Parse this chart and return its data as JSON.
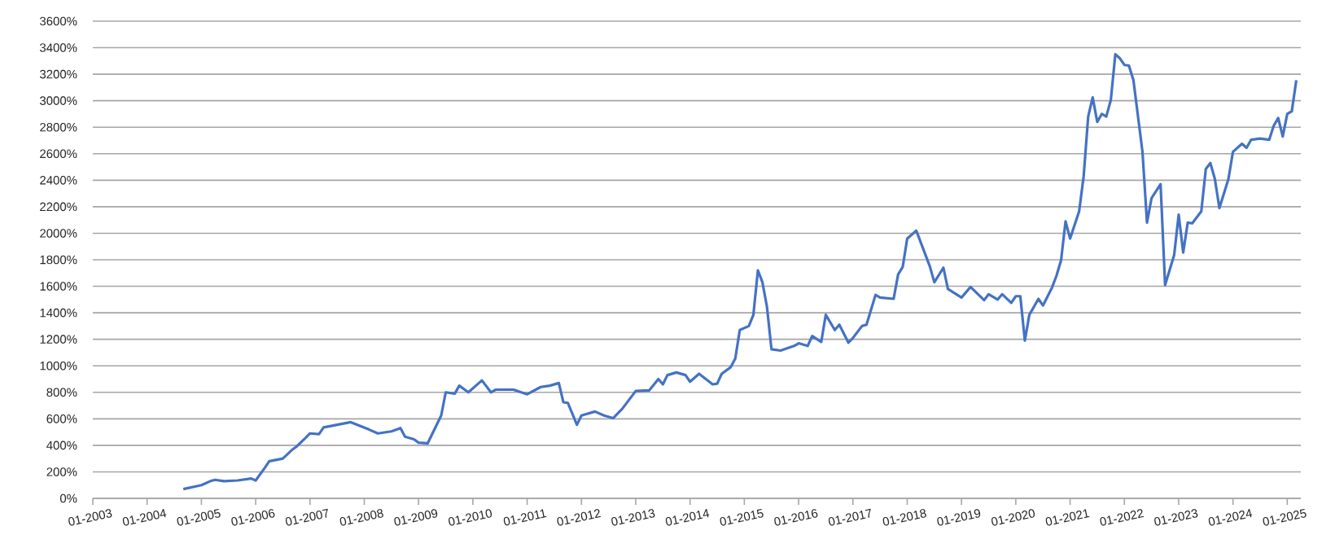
{
  "chart_data": {
    "type": "line",
    "color": "#4472c4",
    "grid": "y",
    "xlim": [
      "2003-01",
      "2025-04"
    ],
    "ylim": [
      0,
      3600
    ],
    "xticks": [
      {
        "value": "2003-01",
        "label": "01-2003"
      },
      {
        "value": "2004-01",
        "label": "01-2004"
      },
      {
        "value": "2005-01",
        "label": "01-2005"
      },
      {
        "value": "2006-01",
        "label": "01-2006"
      },
      {
        "value": "2007-01",
        "label": "01-2007"
      },
      {
        "value": "2008-01",
        "label": "01-2008"
      },
      {
        "value": "2009-01",
        "label": "01-2009"
      },
      {
        "value": "2010-01",
        "label": "01-2010"
      },
      {
        "value": "2011-01",
        "label": "01-2011"
      },
      {
        "value": "2012-01",
        "label": "01-2012"
      },
      {
        "value": "2013-01",
        "label": "01-2013"
      },
      {
        "value": "2014-01",
        "label": "01-2014"
      },
      {
        "value": "2015-01",
        "label": "01-2015"
      },
      {
        "value": "2016-01",
        "label": "01-2016"
      },
      {
        "value": "2017-01",
        "label": "01-2017"
      },
      {
        "value": "2018-01",
        "label": "01-2018"
      },
      {
        "value": "2019-01",
        "label": "01-2019"
      },
      {
        "value": "2020-01",
        "label": "01-2020"
      },
      {
        "value": "2021-01",
        "label": "01-2021"
      },
      {
        "value": "2022-01",
        "label": "01-2022"
      },
      {
        "value": "2023-01",
        "label": "01-2023"
      },
      {
        "value": "2024-01",
        "label": "01-2024"
      },
      {
        "value": "2025-01",
        "label": "01-2025"
      }
    ],
    "yticks": [
      {
        "value": 0,
        "label": "0%"
      },
      {
        "value": 200,
        "label": "200%"
      },
      {
        "value": 400,
        "label": "400%"
      },
      {
        "value": 600,
        "label": "600%"
      },
      {
        "value": 800,
        "label": "800%"
      },
      {
        "value": 1000,
        "label": "1000%"
      },
      {
        "value": 1200,
        "label": "1200%"
      },
      {
        "value": 1400,
        "label": "1400%"
      },
      {
        "value": 1600,
        "label": "1600%"
      },
      {
        "value": 1800,
        "label": "1800%"
      },
      {
        "value": 2000,
        "label": "2000%"
      },
      {
        "value": 2200,
        "label": "2200%"
      },
      {
        "value": 2400,
        "label": "2400%"
      },
      {
        "value": 2600,
        "label": "2600%"
      },
      {
        "value": 2800,
        "label": "2800%"
      },
      {
        "value": 3000,
        "label": "3000%"
      },
      {
        "value": 3200,
        "label": "3200%"
      },
      {
        "value": 3400,
        "label": "3400%"
      },
      {
        "value": 3600,
        "label": "3600%"
      }
    ],
    "x": [
      "2004-09",
      "2005-01",
      "2005-03",
      "2005-04",
      "2005-06",
      "2005-09",
      "2005-12",
      "2006-01",
      "2006-03",
      "2006-04",
      "2006-07",
      "2006-09",
      "2006-10",
      "2006-12",
      "2007-01",
      "2007-03",
      "2007-04",
      "2007-07",
      "2007-10",
      "2008-02",
      "2008-04",
      "2008-07",
      "2008-09",
      "2008-10",
      "2008-12",
      "2009-01",
      "2009-03",
      "2009-06",
      "2009-07",
      "2009-09",
      "2009-10",
      "2009-12",
      "2010-03",
      "2010-05",
      "2010-06",
      "2010-10",
      "2011-01",
      "2011-04",
      "2011-06",
      "2011-08",
      "2011-09",
      "2011-10",
      "2011-12",
      "2012-01",
      "2012-04",
      "2012-06",
      "2012-08",
      "2012-10",
      "2013-01",
      "2013-04",
      "2013-06",
      "2013-07",
      "2013-08",
      "2013-10",
      "2013-12",
      "2014-01",
      "2014-03",
      "2014-06",
      "2014-07",
      "2014-08",
      "2014-10",
      "2014-11",
      "2014-12",
      "2015-02",
      "2015-03",
      "2015-04",
      "2015-05",
      "2015-06",
      "2015-07",
      "2015-09",
      "2015-12",
      "2016-01",
      "2016-03",
      "2016-04",
      "2016-06",
      "2016-07",
      "2016-09",
      "2016-10",
      "2016-12",
      "2017-01",
      "2017-03",
      "2017-04",
      "2017-06",
      "2017-07",
      "2017-10",
      "2017-11",
      "2017-12",
      "2018-01",
      "2018-03",
      "2018-06",
      "2018-07",
      "2018-09",
      "2018-10",
      "2019-01",
      "2019-03",
      "2019-06",
      "2019-07",
      "2019-09",
      "2019-10",
      "2019-12",
      "2020-01",
      "2020-02",
      "2020-03",
      "2020-04",
      "2020-06",
      "2020-07",
      "2020-09",
      "2020-10",
      "2020-11",
      "2020-12",
      "2021-01",
      "2021-03",
      "2021-04",
      "2021-05",
      "2021-06",
      "2021-07",
      "2021-08",
      "2021-09",
      "2021-10",
      "2021-11",
      "2021-12",
      "2022-01",
      "2022-02",
      "2022-03",
      "2022-05",
      "2022-06",
      "2022-07",
      "2022-09",
      "2022-10",
      "2022-12",
      "2023-01",
      "2023-02",
      "2023-03",
      "2023-04",
      "2023-06",
      "2023-07",
      "2023-08",
      "2023-09",
      "2023-10",
      "2023-12",
      "2024-01",
      "2024-03",
      "2024-04",
      "2024-05",
      "2024-07",
      "2024-09",
      "2024-10",
      "2024-11",
      "2024-12",
      "2025-01",
      "2025-02",
      "2025-03"
    ],
    "values": [
      70,
      100,
      130,
      140,
      130,
      135,
      150,
      135,
      230,
      280,
      300,
      365,
      390,
      455,
      490,
      485,
      535,
      555,
      575,
      520,
      490,
      505,
      530,
      465,
      445,
      420,
      415,
      625,
      800,
      790,
      850,
      800,
      890,
      800,
      820,
      820,
      785,
      840,
      850,
      870,
      725,
      720,
      555,
      625,
      655,
      625,
      605,
      675,
      810,
      815,
      900,
      860,
      930,
      950,
      930,
      880,
      940,
      860,
      865,
      940,
      990,
      1055,
      1270,
      1300,
      1385,
      1720,
      1630,
      1445,
      1125,
      1115,
      1150,
      1170,
      1150,
      1225,
      1180,
      1385,
      1270,
      1310,
      1175,
      1210,
      1300,
      1310,
      1535,
      1515,
      1505,
      1690,
      1745,
      1960,
      2020,
      1750,
      1630,
      1740,
      1580,
      1515,
      1595,
      1495,
      1540,
      1500,
      1540,
      1475,
      1525,
      1525,
      1190,
      1385,
      1505,
      1455,
      1590,
      1680,
      1795,
      2090,
      1960,
      2165,
      2430,
      2880,
      3025,
      2840,
      2900,
      2880,
      3005,
      3350,
      3320,
      3270,
      3265,
      3155,
      2615,
      2080,
      2265,
      2370,
      1610,
      1835,
      2140,
      1855,
      2080,
      2075,
      2165,
      2485,
      2530,
      2410,
      2190,
      2410,
      2615,
      2675,
      2645,
      2705,
      2715,
      2705,
      2810,
      2870,
      2730,
      2900,
      2920,
      3155
    ]
  }
}
